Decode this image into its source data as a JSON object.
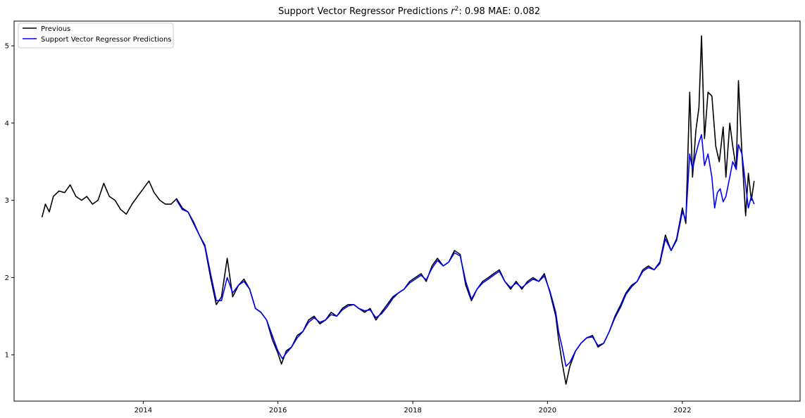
{
  "chart_data": {
    "type": "line",
    "title": {
      "prefix": "Support Vector Regressor Predictions ",
      "r2_symbol": "r",
      "r2_exponent": "2",
      "suffix": ": 0.98 MAE: 0.082"
    },
    "xlabel": "",
    "ylabel": "",
    "x_ticks": [
      "2014",
      "2016",
      "2018",
      "2020",
      "2022"
    ],
    "y_ticks": [
      "1",
      "2",
      "3",
      "4",
      "5"
    ],
    "xlim": [
      "2012-02-01",
      "2023-10-01"
    ],
    "ylim": [
      0.4,
      5.32
    ],
    "grid": false,
    "legend_position": "top-left",
    "series": [
      {
        "name": "Previous",
        "color": "#000000",
        "points": [
          [
            "2012-07-01",
            2.78
          ],
          [
            "2012-07-20",
            2.95
          ],
          [
            "2012-08-10",
            2.85
          ],
          [
            "2012-09-01",
            3.05
          ],
          [
            "2012-10-01",
            3.12
          ],
          [
            "2012-11-01",
            3.1
          ],
          [
            "2012-12-01",
            3.2
          ],
          [
            "2013-01-01",
            3.05
          ],
          [
            "2013-02-01",
            3.0
          ],
          [
            "2013-03-01",
            3.05
          ],
          [
            "2013-04-01",
            2.95
          ],
          [
            "2013-05-01",
            3.0
          ],
          [
            "2013-06-01",
            3.22
          ],
          [
            "2013-07-01",
            3.05
          ],
          [
            "2013-08-01",
            3.0
          ],
          [
            "2013-09-01",
            2.88
          ],
          [
            "2013-10-01",
            2.82
          ],
          [
            "2013-11-01",
            2.95
          ],
          [
            "2013-12-01",
            3.05
          ],
          [
            "2014-01-01",
            3.15
          ],
          [
            "2014-02-01",
            3.25
          ],
          [
            "2014-03-01",
            3.1
          ],
          [
            "2014-04-01",
            3.0
          ],
          [
            "2014-05-01",
            2.95
          ],
          [
            "2014-06-01",
            2.95
          ],
          [
            "2014-07-01",
            3.02
          ],
          [
            "2014-08-01",
            2.9
          ],
          [
            "2014-09-01",
            2.85
          ],
          [
            "2014-10-01",
            2.7
          ],
          [
            "2014-11-01",
            2.55
          ],
          [
            "2014-12-01",
            2.4
          ],
          [
            "2015-01-01",
            2.0
          ],
          [
            "2015-02-01",
            1.65
          ],
          [
            "2015-03-01",
            1.75
          ],
          [
            "2015-04-01",
            2.25
          ],
          [
            "2015-05-01",
            1.75
          ],
          [
            "2015-06-01",
            1.9
          ],
          [
            "2015-07-01",
            1.98
          ],
          [
            "2015-08-01",
            1.85
          ],
          [
            "2015-09-01",
            1.6
          ],
          [
            "2015-10-01",
            1.55
          ],
          [
            "2015-11-01",
            1.45
          ],
          [
            "2015-12-01",
            1.2
          ],
          [
            "2016-01-01",
            1.02
          ],
          [
            "2016-01-20",
            0.88
          ],
          [
            "2016-02-15",
            1.05
          ],
          [
            "2016-03-15",
            1.1
          ],
          [
            "2016-04-15",
            1.25
          ],
          [
            "2016-05-15",
            1.3
          ],
          [
            "2016-06-15",
            1.45
          ],
          [
            "2016-07-15",
            1.5
          ],
          [
            "2016-08-15",
            1.4
          ],
          [
            "2016-09-15",
            1.45
          ],
          [
            "2016-10-15",
            1.55
          ],
          [
            "2016-11-15",
            1.5
          ],
          [
            "2016-12-15",
            1.6
          ],
          [
            "2017-01-15",
            1.65
          ],
          [
            "2017-02-15",
            1.65
          ],
          [
            "2017-03-15",
            1.6
          ],
          [
            "2017-04-15",
            1.55
          ],
          [
            "2017-05-15",
            1.6
          ],
          [
            "2017-06-15",
            1.45
          ],
          [
            "2017-07-15",
            1.55
          ],
          [
            "2017-08-15",
            1.65
          ],
          [
            "2017-09-15",
            1.75
          ],
          [
            "2017-10-15",
            1.8
          ],
          [
            "2017-11-15",
            1.85
          ],
          [
            "2017-12-15",
            1.95
          ],
          [
            "2018-01-15",
            2.0
          ],
          [
            "2018-02-15",
            2.05
          ],
          [
            "2018-03-15",
            1.95
          ],
          [
            "2018-04-15",
            2.15
          ],
          [
            "2018-05-15",
            2.25
          ],
          [
            "2018-06-15",
            2.15
          ],
          [
            "2018-07-15",
            2.2
          ],
          [
            "2018-08-15",
            2.35
          ],
          [
            "2018-09-15",
            2.3
          ],
          [
            "2018-10-15",
            1.9
          ],
          [
            "2018-11-15",
            1.7
          ],
          [
            "2018-12-15",
            1.85
          ],
          [
            "2019-01-15",
            1.95
          ],
          [
            "2019-02-15",
            2.0
          ],
          [
            "2019-03-15",
            2.05
          ],
          [
            "2019-04-15",
            2.1
          ],
          [
            "2019-05-15",
            1.95
          ],
          [
            "2019-06-15",
            1.85
          ],
          [
            "2019-07-15",
            1.95
          ],
          [
            "2019-08-15",
            1.85
          ],
          [
            "2019-09-15",
            1.95
          ],
          [
            "2019-10-15",
            2.0
          ],
          [
            "2019-11-15",
            1.95
          ],
          [
            "2019-12-15",
            2.05
          ],
          [
            "2020-01-15",
            1.8
          ],
          [
            "2020-02-15",
            1.5
          ],
          [
            "2020-03-01",
            1.2
          ],
          [
            "2020-03-20",
            0.9
          ],
          [
            "2020-04-10",
            0.62
          ],
          [
            "2020-05-01",
            0.85
          ],
          [
            "2020-06-01",
            1.05
          ],
          [
            "2020-07-01",
            1.15
          ],
          [
            "2020-08-01",
            1.22
          ],
          [
            "2020-09-01",
            1.25
          ],
          [
            "2020-10-01",
            1.1
          ],
          [
            "2020-11-01",
            1.15
          ],
          [
            "2020-12-01",
            1.3
          ],
          [
            "2021-01-01",
            1.5
          ],
          [
            "2021-02-01",
            1.65
          ],
          [
            "2021-03-01",
            1.8
          ],
          [
            "2021-04-01",
            1.9
          ],
          [
            "2021-05-01",
            1.95
          ],
          [
            "2021-06-01",
            2.1
          ],
          [
            "2021-07-01",
            2.15
          ],
          [
            "2021-08-01",
            2.1
          ],
          [
            "2021-09-01",
            2.2
          ],
          [
            "2021-10-01",
            2.55
          ],
          [
            "2021-11-01",
            2.35
          ],
          [
            "2021-12-01",
            2.5
          ],
          [
            "2022-01-01",
            2.9
          ],
          [
            "2022-01-20",
            2.7
          ],
          [
            "2022-02-10",
            4.4
          ],
          [
            "2022-02-25",
            3.3
          ],
          [
            "2022-03-15",
            3.9
          ],
          [
            "2022-04-01",
            4.2
          ],
          [
            "2022-04-15",
            5.13
          ],
          [
            "2022-05-01",
            3.8
          ],
          [
            "2022-05-20",
            4.4
          ],
          [
            "2022-06-10",
            4.35
          ],
          [
            "2022-07-01",
            3.7
          ],
          [
            "2022-07-20",
            3.5
          ],
          [
            "2022-08-10",
            3.95
          ],
          [
            "2022-08-25",
            3.3
          ],
          [
            "2022-09-15",
            4.0
          ],
          [
            "2022-10-01",
            3.7
          ],
          [
            "2022-10-20",
            3.4
          ],
          [
            "2022-11-01",
            4.55
          ],
          [
            "2022-11-20",
            3.6
          ],
          [
            "2022-12-10",
            2.8
          ],
          [
            "2022-12-25",
            3.35
          ],
          [
            "2023-01-10",
            3.0
          ],
          [
            "2023-01-25",
            3.25
          ]
        ]
      },
      {
        "name": "Support Vector Regressor Predictions",
        "color": "#0000ff",
        "points": [
          [
            "2014-07-01",
            3.0
          ],
          [
            "2014-08-01",
            2.88
          ],
          [
            "2014-09-01",
            2.85
          ],
          [
            "2014-10-01",
            2.72
          ],
          [
            "2014-11-01",
            2.55
          ],
          [
            "2014-12-01",
            2.42
          ],
          [
            "2015-01-01",
            2.05
          ],
          [
            "2015-02-01",
            1.7
          ],
          [
            "2015-03-01",
            1.7
          ],
          [
            "2015-04-01",
            2.0
          ],
          [
            "2015-05-01",
            1.8
          ],
          [
            "2015-06-01",
            1.9
          ],
          [
            "2015-07-01",
            1.95
          ],
          [
            "2015-08-01",
            1.85
          ],
          [
            "2015-09-01",
            1.6
          ],
          [
            "2015-10-01",
            1.55
          ],
          [
            "2015-11-01",
            1.45
          ],
          [
            "2015-12-01",
            1.25
          ],
          [
            "2016-01-01",
            1.05
          ],
          [
            "2016-01-25",
            0.95
          ],
          [
            "2016-02-15",
            1.02
          ],
          [
            "2016-03-15",
            1.1
          ],
          [
            "2016-04-15",
            1.22
          ],
          [
            "2016-05-15",
            1.3
          ],
          [
            "2016-06-15",
            1.42
          ],
          [
            "2016-07-15",
            1.48
          ],
          [
            "2016-08-15",
            1.42
          ],
          [
            "2016-09-15",
            1.45
          ],
          [
            "2016-10-15",
            1.52
          ],
          [
            "2016-11-15",
            1.5
          ],
          [
            "2016-12-15",
            1.58
          ],
          [
            "2017-01-15",
            1.63
          ],
          [
            "2017-02-15",
            1.65
          ],
          [
            "2017-03-15",
            1.6
          ],
          [
            "2017-04-15",
            1.57
          ],
          [
            "2017-05-15",
            1.58
          ],
          [
            "2017-06-15",
            1.48
          ],
          [
            "2017-07-15",
            1.53
          ],
          [
            "2017-08-15",
            1.62
          ],
          [
            "2017-09-15",
            1.73
          ],
          [
            "2017-10-15",
            1.8
          ],
          [
            "2017-11-15",
            1.85
          ],
          [
            "2017-12-15",
            1.93
          ],
          [
            "2018-01-15",
            1.98
          ],
          [
            "2018-02-15",
            2.03
          ],
          [
            "2018-03-15",
            1.97
          ],
          [
            "2018-04-15",
            2.12
          ],
          [
            "2018-05-15",
            2.22
          ],
          [
            "2018-06-15",
            2.15
          ],
          [
            "2018-07-15",
            2.2
          ],
          [
            "2018-08-15",
            2.32
          ],
          [
            "2018-09-15",
            2.28
          ],
          [
            "2018-10-15",
            1.95
          ],
          [
            "2018-11-15",
            1.72
          ],
          [
            "2018-12-15",
            1.85
          ],
          [
            "2019-01-15",
            1.93
          ],
          [
            "2019-02-15",
            1.98
          ],
          [
            "2019-03-15",
            2.03
          ],
          [
            "2019-04-15",
            2.08
          ],
          [
            "2019-05-15",
            1.95
          ],
          [
            "2019-06-15",
            1.87
          ],
          [
            "2019-07-15",
            1.93
          ],
          [
            "2019-08-15",
            1.87
          ],
          [
            "2019-09-15",
            1.93
          ],
          [
            "2019-10-15",
            1.98
          ],
          [
            "2019-11-15",
            1.95
          ],
          [
            "2019-12-15",
            2.02
          ],
          [
            "2020-01-15",
            1.82
          ],
          [
            "2020-02-15",
            1.55
          ],
          [
            "2020-03-01",
            1.3
          ],
          [
            "2020-03-20",
            1.1
          ],
          [
            "2020-04-10",
            0.85
          ],
          [
            "2020-05-01",
            0.9
          ],
          [
            "2020-06-01",
            1.05
          ],
          [
            "2020-07-01",
            1.15
          ],
          [
            "2020-08-01",
            1.22
          ],
          [
            "2020-09-01",
            1.23
          ],
          [
            "2020-10-01",
            1.12
          ],
          [
            "2020-11-01",
            1.15
          ],
          [
            "2020-12-01",
            1.3
          ],
          [
            "2021-01-01",
            1.48
          ],
          [
            "2021-02-01",
            1.62
          ],
          [
            "2021-03-01",
            1.78
          ],
          [
            "2021-04-01",
            1.88
          ],
          [
            "2021-05-01",
            1.95
          ],
          [
            "2021-06-01",
            2.08
          ],
          [
            "2021-07-01",
            2.13
          ],
          [
            "2021-08-01",
            2.1
          ],
          [
            "2021-09-01",
            2.18
          ],
          [
            "2021-10-01",
            2.5
          ],
          [
            "2021-11-01",
            2.35
          ],
          [
            "2021-12-01",
            2.48
          ],
          [
            "2022-01-01",
            2.85
          ],
          [
            "2022-01-20",
            2.75
          ],
          [
            "2022-02-10",
            3.6
          ],
          [
            "2022-02-25",
            3.4
          ],
          [
            "2022-03-15",
            3.6
          ],
          [
            "2022-04-01",
            3.75
          ],
          [
            "2022-04-15",
            3.85
          ],
          [
            "2022-05-01",
            3.45
          ],
          [
            "2022-05-20",
            3.6
          ],
          [
            "2022-06-10",
            3.3
          ],
          [
            "2022-06-25",
            2.9
          ],
          [
            "2022-07-10",
            3.1
          ],
          [
            "2022-07-25",
            3.15
          ],
          [
            "2022-08-10",
            2.98
          ],
          [
            "2022-08-25",
            3.05
          ],
          [
            "2022-09-15",
            3.3
          ],
          [
            "2022-10-01",
            3.5
          ],
          [
            "2022-10-20",
            3.4
          ],
          [
            "2022-11-01",
            3.72
          ],
          [
            "2022-11-20",
            3.6
          ],
          [
            "2022-12-10",
            3.2
          ],
          [
            "2022-12-25",
            2.9
          ],
          [
            "2023-01-10",
            3.05
          ],
          [
            "2023-01-25",
            2.95
          ]
        ]
      }
    ]
  }
}
